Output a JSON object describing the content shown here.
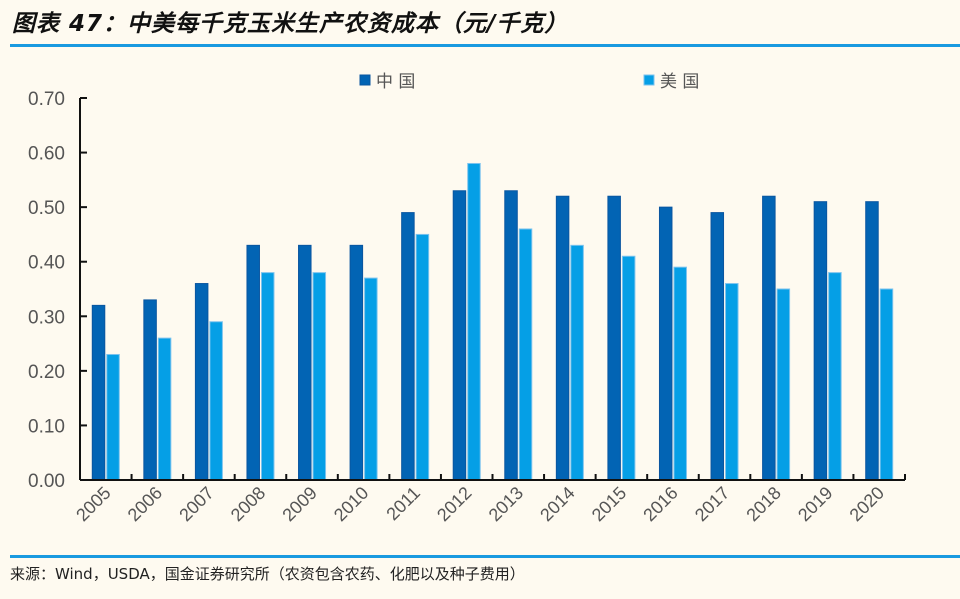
{
  "header": {
    "title": "图表 47：中美每千克玉米生产农资成本（元/千克）"
  },
  "footer": {
    "source": "来源：Wind，USDA，国金证券研究所（农资包含农药、化肥以及种子费用）"
  },
  "colors": {
    "china": "#0264b4",
    "usa": "#059fe6",
    "rule": "#1a9ae0",
    "background": "#fefaf0"
  },
  "chart_data": {
    "type": "bar",
    "title": "中美每千克玉米生产农资成本（元/千克）",
    "xlabel": "",
    "ylabel": "",
    "ylim": [
      0,
      0.7
    ],
    "yticks": [
      "0.00",
      "0.10",
      "0.20",
      "0.30",
      "0.40",
      "0.50",
      "0.60",
      "0.70"
    ],
    "grid": false,
    "legend_position": "top",
    "categories": [
      "2005",
      "2006",
      "2007",
      "2008",
      "2009",
      "2010",
      "2011",
      "2012",
      "2013",
      "2014",
      "2015",
      "2016",
      "2017",
      "2018",
      "2019",
      "2020"
    ],
    "series": [
      {
        "name": "中国",
        "color": "#0264b4",
        "values": [
          0.32,
          0.33,
          0.36,
          0.43,
          0.43,
          0.43,
          0.49,
          0.53,
          0.53,
          0.52,
          0.52,
          0.5,
          0.49,
          0.52,
          0.51,
          0.51
        ]
      },
      {
        "name": "美国",
        "color": "#059fe6",
        "values": [
          0.23,
          0.26,
          0.29,
          0.38,
          0.38,
          0.37,
          0.45,
          0.58,
          0.46,
          0.43,
          0.41,
          0.39,
          0.36,
          0.35,
          0.38,
          0.35
        ]
      }
    ]
  }
}
